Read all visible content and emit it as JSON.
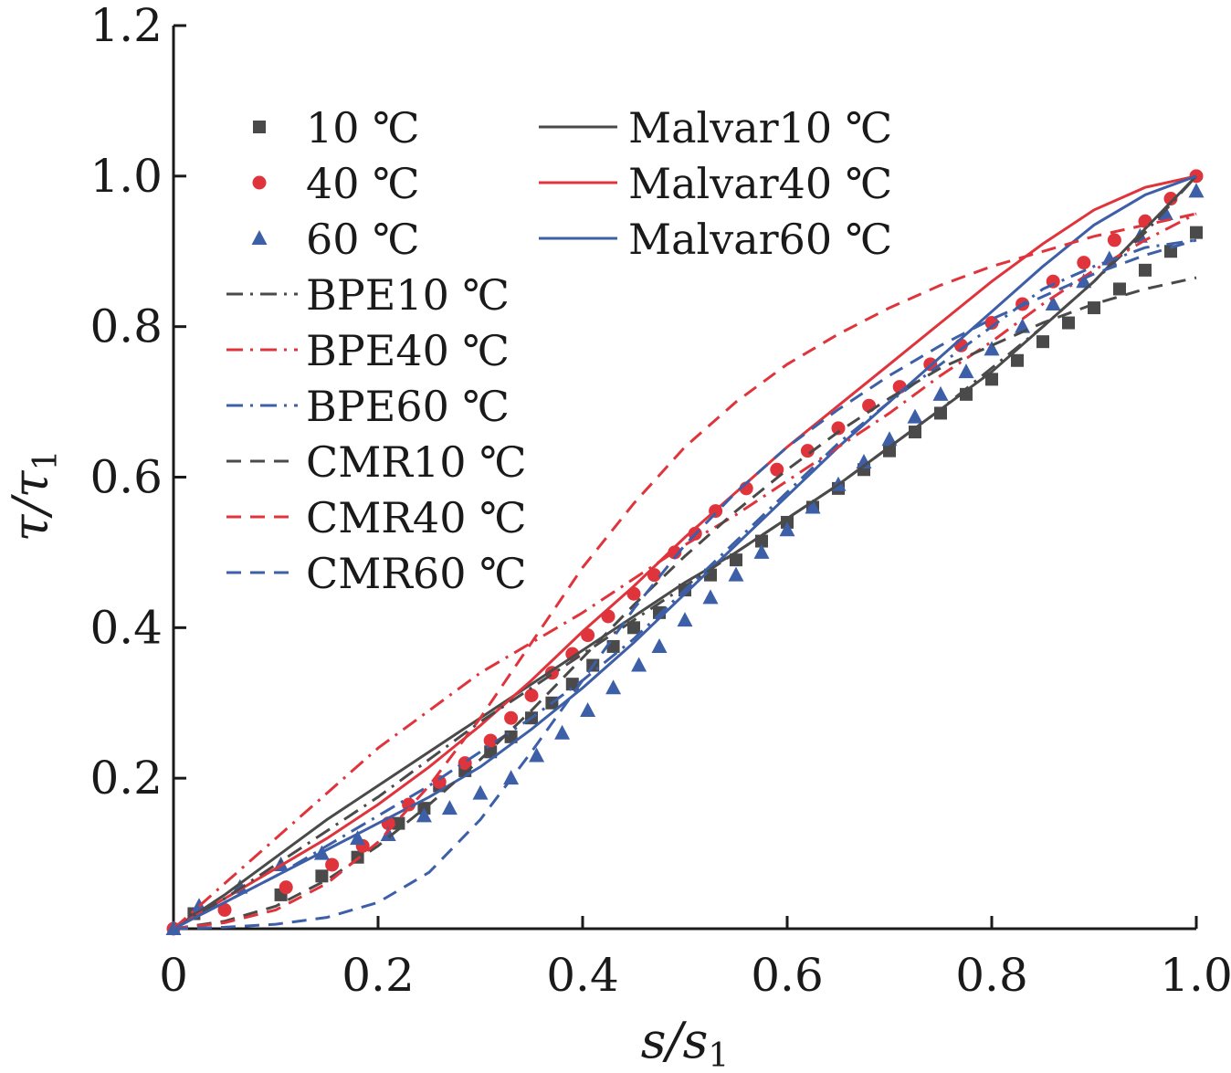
{
  "chart_data": {
    "type": "scatter",
    "title": "",
    "xlabel": "s/s",
    "xlabel_sub": "1",
    "ylabel": "τ/τ",
    "ylabel_sub": "1",
    "xlim": [
      0,
      1.0
    ],
    "ylim": [
      0,
      1.2
    ],
    "xticks": [
      0,
      0.2,
      0.4,
      0.6,
      0.8,
      1.0
    ],
    "xtick_labels": [
      "0",
      "0.2",
      "0.4",
      "0.6",
      "0.8",
      "1.0"
    ],
    "yticks": [
      0.2,
      0.4,
      0.6,
      0.8,
      1.0,
      1.2
    ],
    "ytick_labels": [
      "0.2",
      "0.4",
      "0.6",
      "0.8",
      "1.0",
      "1.2"
    ],
    "grid": false,
    "legend_position": "top-left",
    "colors": {
      "10": "#4a4a4a",
      "40": "#e0343c",
      "60": "#3d5fa8"
    },
    "series": [
      {
        "name": "10 ℃",
        "kind": "points",
        "marker": "square",
        "color": "#4a4a4a",
        "x": [
          0.02,
          0.105,
          0.145,
          0.18,
          0.22,
          0.245,
          0.26,
          0.285,
          0.31,
          0.33,
          0.35,
          0.37,
          0.39,
          0.41,
          0.43,
          0.45,
          0.475,
          0.5,
          0.525,
          0.55,
          0.575,
          0.6,
          0.625,
          0.65,
          0.675,
          0.7,
          0.725,
          0.75,
          0.775,
          0.8,
          0.825,
          0.85,
          0.875,
          0.9,
          0.925,
          0.95,
          0.975,
          1.0
        ],
        "y": [
          0.02,
          0.045,
          0.07,
          0.095,
          0.14,
          0.16,
          0.19,
          0.21,
          0.235,
          0.255,
          0.28,
          0.3,
          0.325,
          0.35,
          0.375,
          0.4,
          0.42,
          0.45,
          0.47,
          0.49,
          0.515,
          0.54,
          0.56,
          0.585,
          0.61,
          0.635,
          0.66,
          0.685,
          0.71,
          0.73,
          0.755,
          0.78,
          0.805,
          0.825,
          0.85,
          0.875,
          0.9,
          0.925
        ]
      },
      {
        "name": "40 ℃",
        "kind": "points",
        "marker": "circle",
        "color": "#e0343c",
        "x": [
          0.0,
          0.05,
          0.11,
          0.155,
          0.185,
          0.21,
          0.23,
          0.26,
          0.285,
          0.31,
          0.33,
          0.35,
          0.37,
          0.39,
          0.405,
          0.425,
          0.45,
          0.47,
          0.49,
          0.51,
          0.53,
          0.56,
          0.59,
          0.62,
          0.65,
          0.68,
          0.71,
          0.74,
          0.77,
          0.8,
          0.83,
          0.86,
          0.89,
          0.92,
          0.95,
          0.975,
          1.0
        ],
        "y": [
          0.0,
          0.025,
          0.055,
          0.085,
          0.11,
          0.14,
          0.165,
          0.195,
          0.22,
          0.25,
          0.28,
          0.31,
          0.34,
          0.365,
          0.39,
          0.415,
          0.445,
          0.47,
          0.5,
          0.525,
          0.555,
          0.585,
          0.61,
          0.635,
          0.665,
          0.695,
          0.72,
          0.75,
          0.775,
          0.805,
          0.83,
          0.86,
          0.885,
          0.915,
          0.94,
          0.97,
          1.0
        ]
      },
      {
        "name": "60 ℃",
        "kind": "points",
        "marker": "triangle",
        "color": "#3d5fa8",
        "x": [
          0.0,
          0.025,
          0.065,
          0.105,
          0.145,
          0.18,
          0.21,
          0.245,
          0.27,
          0.3,
          0.33,
          0.355,
          0.38,
          0.405,
          0.43,
          0.455,
          0.475,
          0.5,
          0.525,
          0.55,
          0.575,
          0.6,
          0.625,
          0.65,
          0.675,
          0.7,
          0.725,
          0.75,
          0.775,
          0.8,
          0.83,
          0.86,
          0.89,
          0.915,
          0.945,
          0.97,
          1.0
        ],
        "y": [
          0.0,
          0.03,
          0.055,
          0.085,
          0.1,
          0.12,
          0.125,
          0.15,
          0.16,
          0.18,
          0.2,
          0.23,
          0.26,
          0.29,
          0.32,
          0.35,
          0.375,
          0.41,
          0.44,
          0.47,
          0.5,
          0.53,
          0.56,
          0.59,
          0.62,
          0.65,
          0.68,
          0.71,
          0.74,
          0.77,
          0.8,
          0.83,
          0.86,
          0.89,
          0.92,
          0.95,
          0.98
        ]
      },
      {
        "name": "Malvar10 ℃",
        "kind": "line",
        "dash": "solid",
        "color": "#4a4a4a",
        "x": [
          0,
          0.05,
          0.1,
          0.15,
          0.2,
          0.25,
          0.3,
          0.35,
          0.4,
          0.45,
          0.5,
          0.55,
          0.6,
          0.65,
          0.7,
          0.75,
          0.8,
          0.85,
          0.9,
          0.95,
          1.0
        ],
        "y": [
          0,
          0.045,
          0.095,
          0.145,
          0.19,
          0.235,
          0.28,
          0.325,
          0.37,
          0.415,
          0.46,
          0.5,
          0.545,
          0.59,
          0.64,
          0.69,
          0.74,
          0.8,
          0.86,
          0.93,
          1.0
        ]
      },
      {
        "name": "Malvar40 ℃",
        "kind": "line",
        "dash": "solid",
        "color": "#e0343c",
        "x": [
          0,
          0.05,
          0.1,
          0.15,
          0.2,
          0.25,
          0.3,
          0.35,
          0.4,
          0.45,
          0.5,
          0.55,
          0.6,
          0.65,
          0.7,
          0.75,
          0.8,
          0.85,
          0.9,
          0.95,
          1.0
        ],
        "y": [
          0,
          0.04,
          0.08,
          0.12,
          0.165,
          0.215,
          0.27,
          0.33,
          0.395,
          0.455,
          0.52,
          0.58,
          0.64,
          0.695,
          0.75,
          0.805,
          0.86,
          0.91,
          0.955,
          0.985,
          1.0
        ]
      },
      {
        "name": "Malvar60 ℃",
        "kind": "line",
        "dash": "solid",
        "color": "#3d5fa8",
        "x": [
          0,
          0.05,
          0.1,
          0.15,
          0.2,
          0.25,
          0.3,
          0.35,
          0.4,
          0.45,
          0.5,
          0.55,
          0.6,
          0.65,
          0.7,
          0.75,
          0.8,
          0.85,
          0.9,
          0.95,
          1.0
        ],
        "y": [
          0,
          0.035,
          0.07,
          0.105,
          0.14,
          0.175,
          0.215,
          0.265,
          0.32,
          0.38,
          0.445,
          0.51,
          0.575,
          0.64,
          0.7,
          0.76,
          0.82,
          0.88,
          0.935,
          0.975,
          1.0
        ]
      },
      {
        "name": "BPE10 ℃",
        "kind": "line",
        "dash": "dashdot",
        "color": "#4a4a4a",
        "x": [
          0,
          0.05,
          0.1,
          0.15,
          0.2,
          0.25,
          0.3,
          0.35,
          0.4,
          0.45,
          0.5,
          0.55,
          0.6,
          0.65,
          0.7,
          0.75,
          0.8,
          0.85,
          0.9,
          0.95,
          1.0
        ],
        "y": [
          0,
          0.04,
          0.085,
          0.13,
          0.175,
          0.225,
          0.275,
          0.32,
          0.365,
          0.41,
          0.455,
          0.5,
          0.545,
          0.59,
          0.64,
          0.69,
          0.745,
          0.8,
          0.86,
          0.925,
          1.0
        ]
      },
      {
        "name": "BPE40 ℃",
        "kind": "line",
        "dash": "dashdot",
        "color": "#e0343c",
        "x": [
          0,
          0.05,
          0.1,
          0.15,
          0.2,
          0.25,
          0.3,
          0.35,
          0.4,
          0.45,
          0.5,
          0.55,
          0.6,
          0.65,
          0.7,
          0.75,
          0.8,
          0.85,
          0.9,
          0.95,
          1.0
        ],
        "y": [
          0,
          0.06,
          0.12,
          0.18,
          0.24,
          0.29,
          0.34,
          0.38,
          0.42,
          0.465,
          0.51,
          0.55,
          0.595,
          0.64,
          0.685,
          0.735,
          0.78,
          0.83,
          0.875,
          0.915,
          0.95
        ]
      },
      {
        "name": "BPE60 ℃",
        "kind": "line",
        "dash": "dashdot",
        "color": "#3d5fa8",
        "x": [
          0,
          0.05,
          0.1,
          0.15,
          0.2,
          0.25,
          0.3,
          0.35,
          0.4,
          0.45,
          0.5,
          0.55,
          0.6,
          0.65,
          0.7,
          0.75,
          0.8,
          0.85,
          0.9,
          0.95,
          1.0
        ],
        "y": [
          0,
          0.035,
          0.07,
          0.11,
          0.15,
          0.19,
          0.235,
          0.28,
          0.33,
          0.385,
          0.45,
          0.515,
          0.58,
          0.645,
          0.7,
          0.75,
          0.8,
          0.85,
          0.88,
          0.905,
          0.915
        ]
      },
      {
        "name": "CMR10 ℃",
        "kind": "line",
        "dash": "dashed",
        "color": "#4a4a4a",
        "x": [
          0,
          0.05,
          0.1,
          0.15,
          0.2,
          0.25,
          0.3,
          0.35,
          0.4,
          0.45,
          0.5,
          0.55,
          0.6,
          0.65,
          0.7,
          0.75,
          0.8,
          0.85,
          0.9,
          0.95,
          1.0
        ],
        "y": [
          0,
          0.01,
          0.03,
          0.065,
          0.11,
          0.165,
          0.225,
          0.29,
          0.36,
          0.43,
          0.495,
          0.555,
          0.61,
          0.66,
          0.705,
          0.745,
          0.775,
          0.805,
          0.83,
          0.85,
          0.865
        ]
      },
      {
        "name": "CMR40 ℃",
        "kind": "line",
        "dash": "dashed",
        "color": "#e0343c",
        "x": [
          0,
          0.05,
          0.1,
          0.15,
          0.2,
          0.25,
          0.3,
          0.35,
          0.4,
          0.45,
          0.5,
          0.55,
          0.6,
          0.65,
          0.7,
          0.75,
          0.8,
          0.85,
          0.9,
          0.95,
          1.0
        ],
        "y": [
          0,
          0.008,
          0.025,
          0.06,
          0.115,
          0.19,
          0.28,
          0.38,
          0.48,
          0.565,
          0.64,
          0.7,
          0.75,
          0.79,
          0.825,
          0.855,
          0.88,
          0.9,
          0.92,
          0.935,
          0.95
        ]
      },
      {
        "name": "CMR60 ℃",
        "kind": "line",
        "dash": "dashed",
        "color": "#3d5fa8",
        "x": [
          0,
          0.05,
          0.1,
          0.15,
          0.2,
          0.25,
          0.3,
          0.35,
          0.4,
          0.45,
          0.5,
          0.55,
          0.6,
          0.65,
          0.7,
          0.75,
          0.8,
          0.85,
          0.9,
          0.95,
          1.0
        ],
        "y": [
          0,
          0.002,
          0.006,
          0.015,
          0.035,
          0.075,
          0.145,
          0.235,
          0.33,
          0.425,
          0.51,
          0.58,
          0.64,
          0.69,
          0.735,
          0.775,
          0.81,
          0.84,
          0.87,
          0.895,
          0.915
        ]
      }
    ],
    "legend_columns": [
      [
        "10 ℃",
        "40 ℃",
        "60 ℃",
        "BPE10 ℃",
        "BPE40 ℃",
        "BPE60 ℃",
        "CMR10 ℃",
        "CMR40 ℃",
        "CMR60 ℃"
      ],
      [
        "Malvar10 ℃",
        "Malvar40 ℃",
        "Malvar60 ℃"
      ]
    ]
  }
}
